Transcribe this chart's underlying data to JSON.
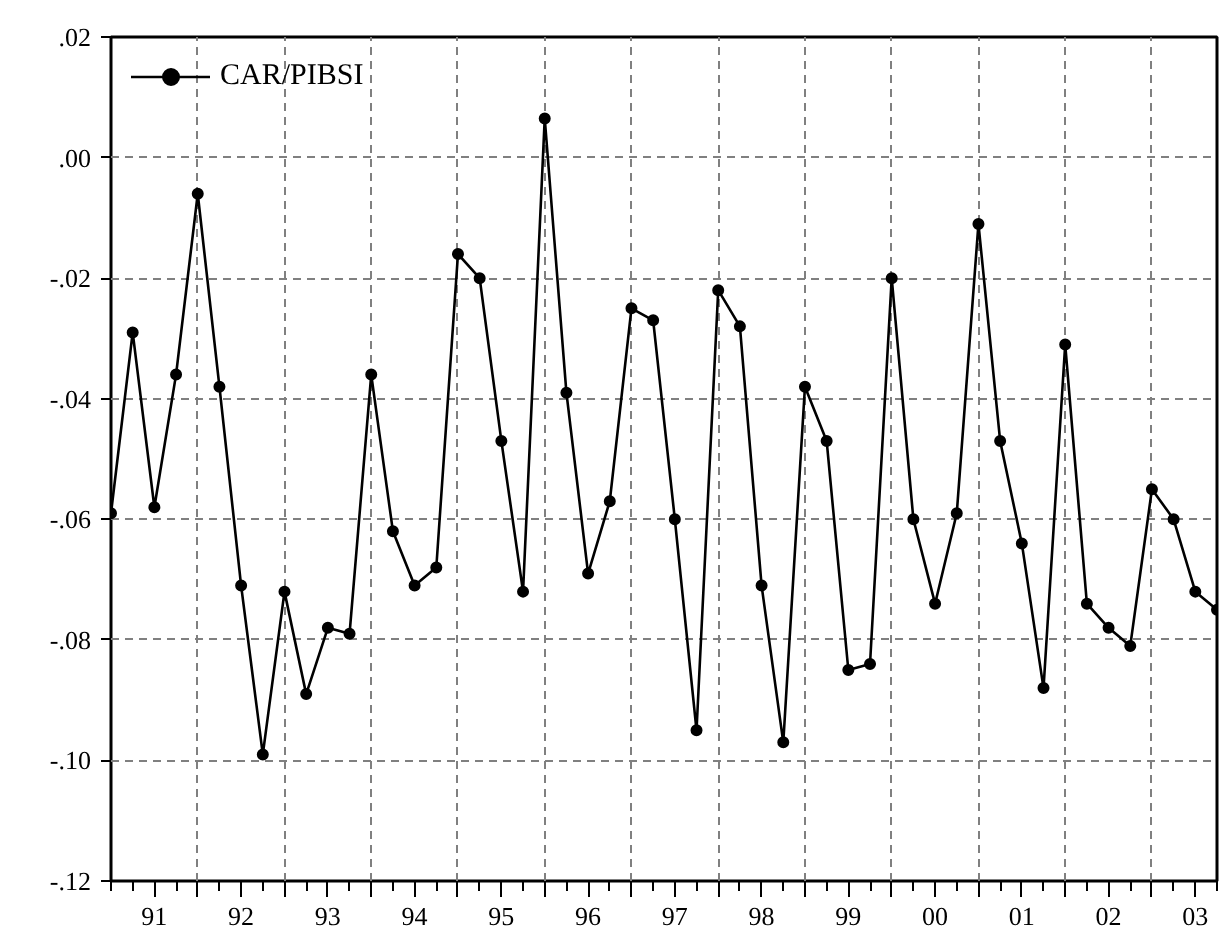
{
  "chart_data": {
    "type": "line",
    "marker": "circle",
    "line_style": "solid",
    "grid": true,
    "legend": "top left",
    "categories": [
      null,
      null,
      "91",
      null,
      null,
      null,
      "92",
      null,
      null,
      null,
      "93",
      null,
      null,
      null,
      "94",
      null,
      null,
      null,
      "95",
      null,
      null,
      null,
      "96",
      null,
      null,
      null,
      "97",
      null,
      null,
      null,
      "98",
      null,
      null,
      null,
      "99",
      null,
      null,
      null,
      "00",
      null,
      null,
      null,
      "01",
      null,
      null,
      null,
      "02",
      null,
      null,
      null,
      "03",
      null
    ],
    "series": [
      {
        "name": "CAR/PIBSI",
        "color": "#000000",
        "values": [
          -0.059,
          -0.029,
          -0.058,
          -0.036,
          -0.006,
          -0.038,
          -0.071,
          -0.099,
          -0.072,
          -0.089,
          -0.078,
          -0.079,
          -0.036,
          -0.062,
          -0.071,
          -0.068,
          -0.016,
          -0.02,
          -0.047,
          -0.072,
          0.0065,
          -0.039,
          -0.069,
          -0.057,
          -0.025,
          -0.027,
          -0.06,
          -0.095,
          -0.022,
          -0.028,
          -0.071,
          -0.097,
          -0.038,
          -0.047,
          -0.085,
          -0.084,
          -0.02,
          -0.06,
          -0.074,
          -0.059,
          -0.011,
          -0.047,
          -0.064,
          -0.088,
          -0.031,
          -0.074,
          -0.078,
          -0.081,
          -0.055,
          -0.06,
          -0.072,
          -0.075
        ]
      }
    ],
    "ylim": [
      -0.12,
      0.02
    ],
    "yticks": [
      {
        "value": -0.12,
        "label": "-.12"
      },
      {
        "value": -0.1,
        "label": "-.10"
      },
      {
        "value": -0.08,
        "label": "-.08"
      },
      {
        "value": -0.06,
        "label": "-.06"
      },
      {
        "value": -0.04,
        "label": "-.04"
      },
      {
        "value": -0.02,
        "label": "-.02"
      },
      {
        "value": 0,
        "label": ".00"
      },
      {
        "value": 0.02,
        "label": ".02"
      }
    ]
  }
}
